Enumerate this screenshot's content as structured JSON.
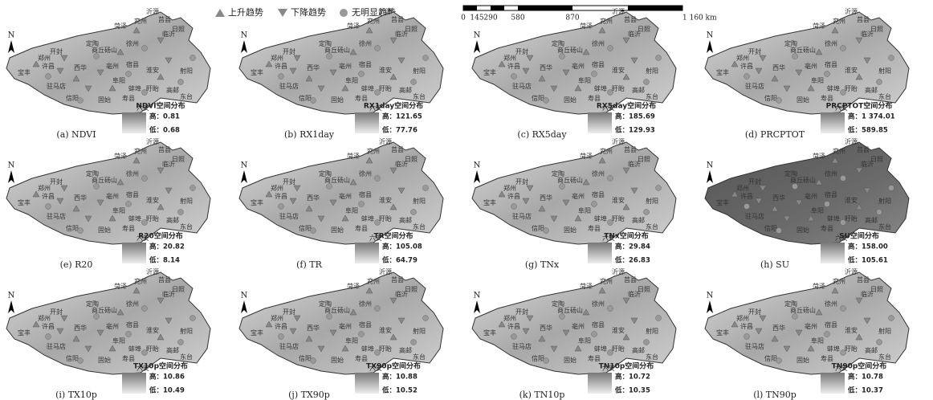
{
  "legend": [
    "上升趋势",
    "下降趋势",
    "无明显趋势"
  ],
  "scale_bar": [
    "0",
    "145",
    "290",
    "580",
    "870",
    "1 160 km"
  ],
  "north_label": "N",
  "cities": [
    "沂源",
    "兖州",
    "莒县",
    "日照",
    "菏泽",
    "临沂",
    "郑州",
    "开封",
    "定陶",
    "许昌",
    "商丘砀山",
    "徐州",
    "宝丰",
    "西华",
    "亳州",
    "宿县",
    "淮安",
    "射阳",
    "驻马店",
    "阜阳",
    "蚌埠",
    "盱眙",
    "高邮",
    "东台",
    "信阳",
    "固始",
    "寿县",
    "六安"
  ],
  "panels": [
    {
      "caption": "(a) NDVI",
      "legend_title": "NDVI空间分布",
      "high": "高：0.81",
      "low": "低：0.68"
    },
    {
      "caption": "(b) RX1day",
      "legend_title": "RX1day空间分布",
      "high": "高：121.65",
      "low": "低：77.76"
    },
    {
      "caption": "(c) RX5day",
      "legend_title": "RX5day空间分布",
      "high": "高：185.69",
      "low": "低：129.93"
    },
    {
      "caption": "(d) PRCPTOT",
      "legend_title": "PRCPTOT空间分布",
      "high": "高：1 374.01",
      "low": "低：589.85"
    },
    {
      "caption": "(e) R20",
      "legend_title": "R20空间分布",
      "high": "高：20.82",
      "low": "低：8.14"
    },
    {
      "caption": "(f) TR",
      "legend_title": "TR空间分布",
      "high": "高：105.08",
      "low": "低：64.79"
    },
    {
      "caption": "(g) TNx",
      "legend_title": "TNx空间分布",
      "high": "高：29.84",
      "low": "低：26.83"
    },
    {
      "caption": "(h) SU",
      "legend_title": "SU空间分布",
      "high": "高：158.00",
      "low": "低：105.61"
    },
    {
      "caption": "(i) TX10p",
      "legend_title": "TX10p空间分布",
      "high": "高：10.86",
      "low": "低：10.49"
    },
    {
      "caption": "(j) TX90p",
      "legend_title": "TX90p空间分布",
      "high": "高：10.88",
      "low": "低：10.52"
    },
    {
      "caption": "(k) TN10p",
      "legend_title": "TN10p空间分布",
      "high": "高：10.72",
      "low": "低：10.35"
    },
    {
      "caption": "(l) TN90p",
      "legend_title": "TN90p空间分布",
      "high": "高：10.78",
      "low": "低：10.37"
    }
  ]
}
